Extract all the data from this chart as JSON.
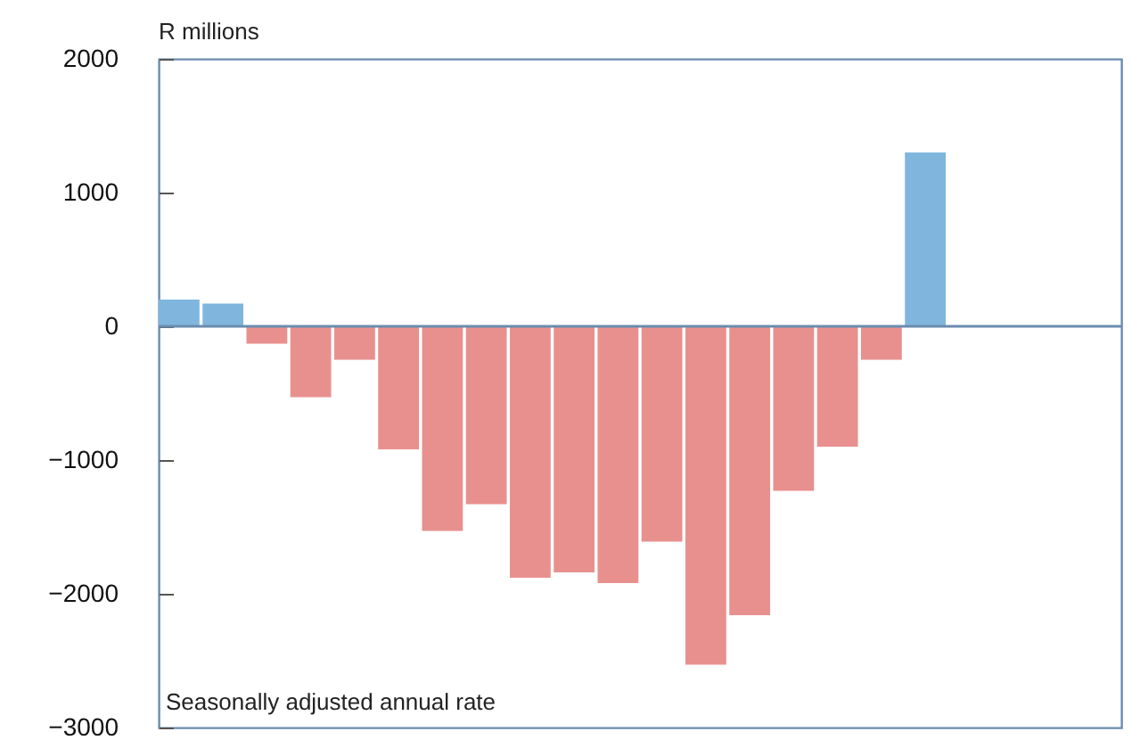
{
  "chart_data": {
    "type": "bar",
    "ylabel": "R millions",
    "annotations": [
      "Seasonally adjusted annual rate"
    ],
    "categories": [
      null,
      null,
      null,
      null,
      null,
      null,
      null,
      null,
      null,
      null,
      null,
      null,
      null,
      null,
      null,
      null,
      null,
      null,
      null,
      null,
      null,
      null
    ],
    "values": [
      200,
      170,
      -130,
      -530,
      -250,
      -920,
      -1530,
      -1330,
      -1880,
      -1840,
      -1920,
      -1610,
      -2530,
      -2160,
      -1230,
      -900,
      -250,
      1300,
      null,
      null,
      null,
      null
    ],
    "colors": [
      "#80b6dd",
      "#80b6dd",
      "#e8908e",
      "#e8908e",
      "#e8908e",
      "#e8908e",
      "#e8908e",
      "#e8908e",
      "#e8908e",
      "#e8908e",
      "#e8908e",
      "#e8908e",
      "#e8908e",
      "#e8908e",
      "#e8908e",
      "#e8908e",
      "#e8908e",
      "#80b6dd",
      "#80b6dd",
      "#80b6dd",
      "#80b6dd",
      "#80b6dd"
    ],
    "ylim": [
      -3000,
      2000
    ],
    "yticks": [
      -3000,
      -2000,
      -1000,
      0,
      1000,
      2000
    ],
    "ref_lines": [
      {
        "axis": "y",
        "value": 0,
        "color": "#6a8cb0"
      }
    ],
    "tick_labels": "y"
  }
}
